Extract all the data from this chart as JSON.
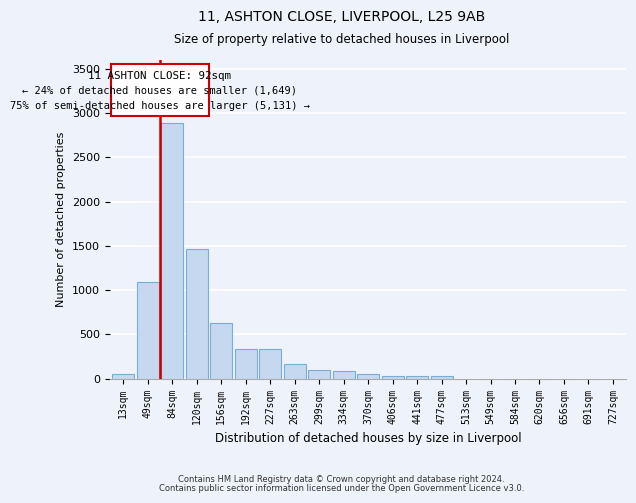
{
  "title1": "11, ASHTON CLOSE, LIVERPOOL, L25 9AB",
  "title2": "Size of property relative to detached houses in Liverpool",
  "xlabel": "Distribution of detached houses by size in Liverpool",
  "ylabel": "Number of detached properties",
  "categories": [
    "13sqm",
    "49sqm",
    "84sqm",
    "120sqm",
    "156sqm",
    "192sqm",
    "227sqm",
    "263sqm",
    "299sqm",
    "334sqm",
    "370sqm",
    "406sqm",
    "441sqm",
    "477sqm",
    "513sqm",
    "549sqm",
    "584sqm",
    "620sqm",
    "656sqm",
    "691sqm",
    "727sqm"
  ],
  "values": [
    50,
    1090,
    2890,
    1470,
    630,
    335,
    335,
    170,
    100,
    85,
    55,
    35,
    35,
    25,
    0,
    0,
    0,
    0,
    0,
    0,
    0
  ],
  "bar_color": "#c5d8f0",
  "bar_edge_color": "#7aadd4",
  "vline_color": "#cc0000",
  "vline_x_index": 2,
  "annotation_text_line1": "11 ASHTON CLOSE: 92sqm",
  "annotation_text_line2": "← 24% of detached houses are smaller (1,649)",
  "annotation_text_line3": "75% of semi-detached houses are larger (5,131) →",
  "ylim": [
    0,
    3600
  ],
  "yticks": [
    0,
    500,
    1000,
    1500,
    2000,
    2500,
    3000,
    3500
  ],
  "background_color": "#eef2fb",
  "grid_color": "#ffffff",
  "footer1": "Contains HM Land Registry data © Crown copyright and database right 2024.",
  "footer2": "Contains public sector information licensed under the Open Government Licence v3.0."
}
